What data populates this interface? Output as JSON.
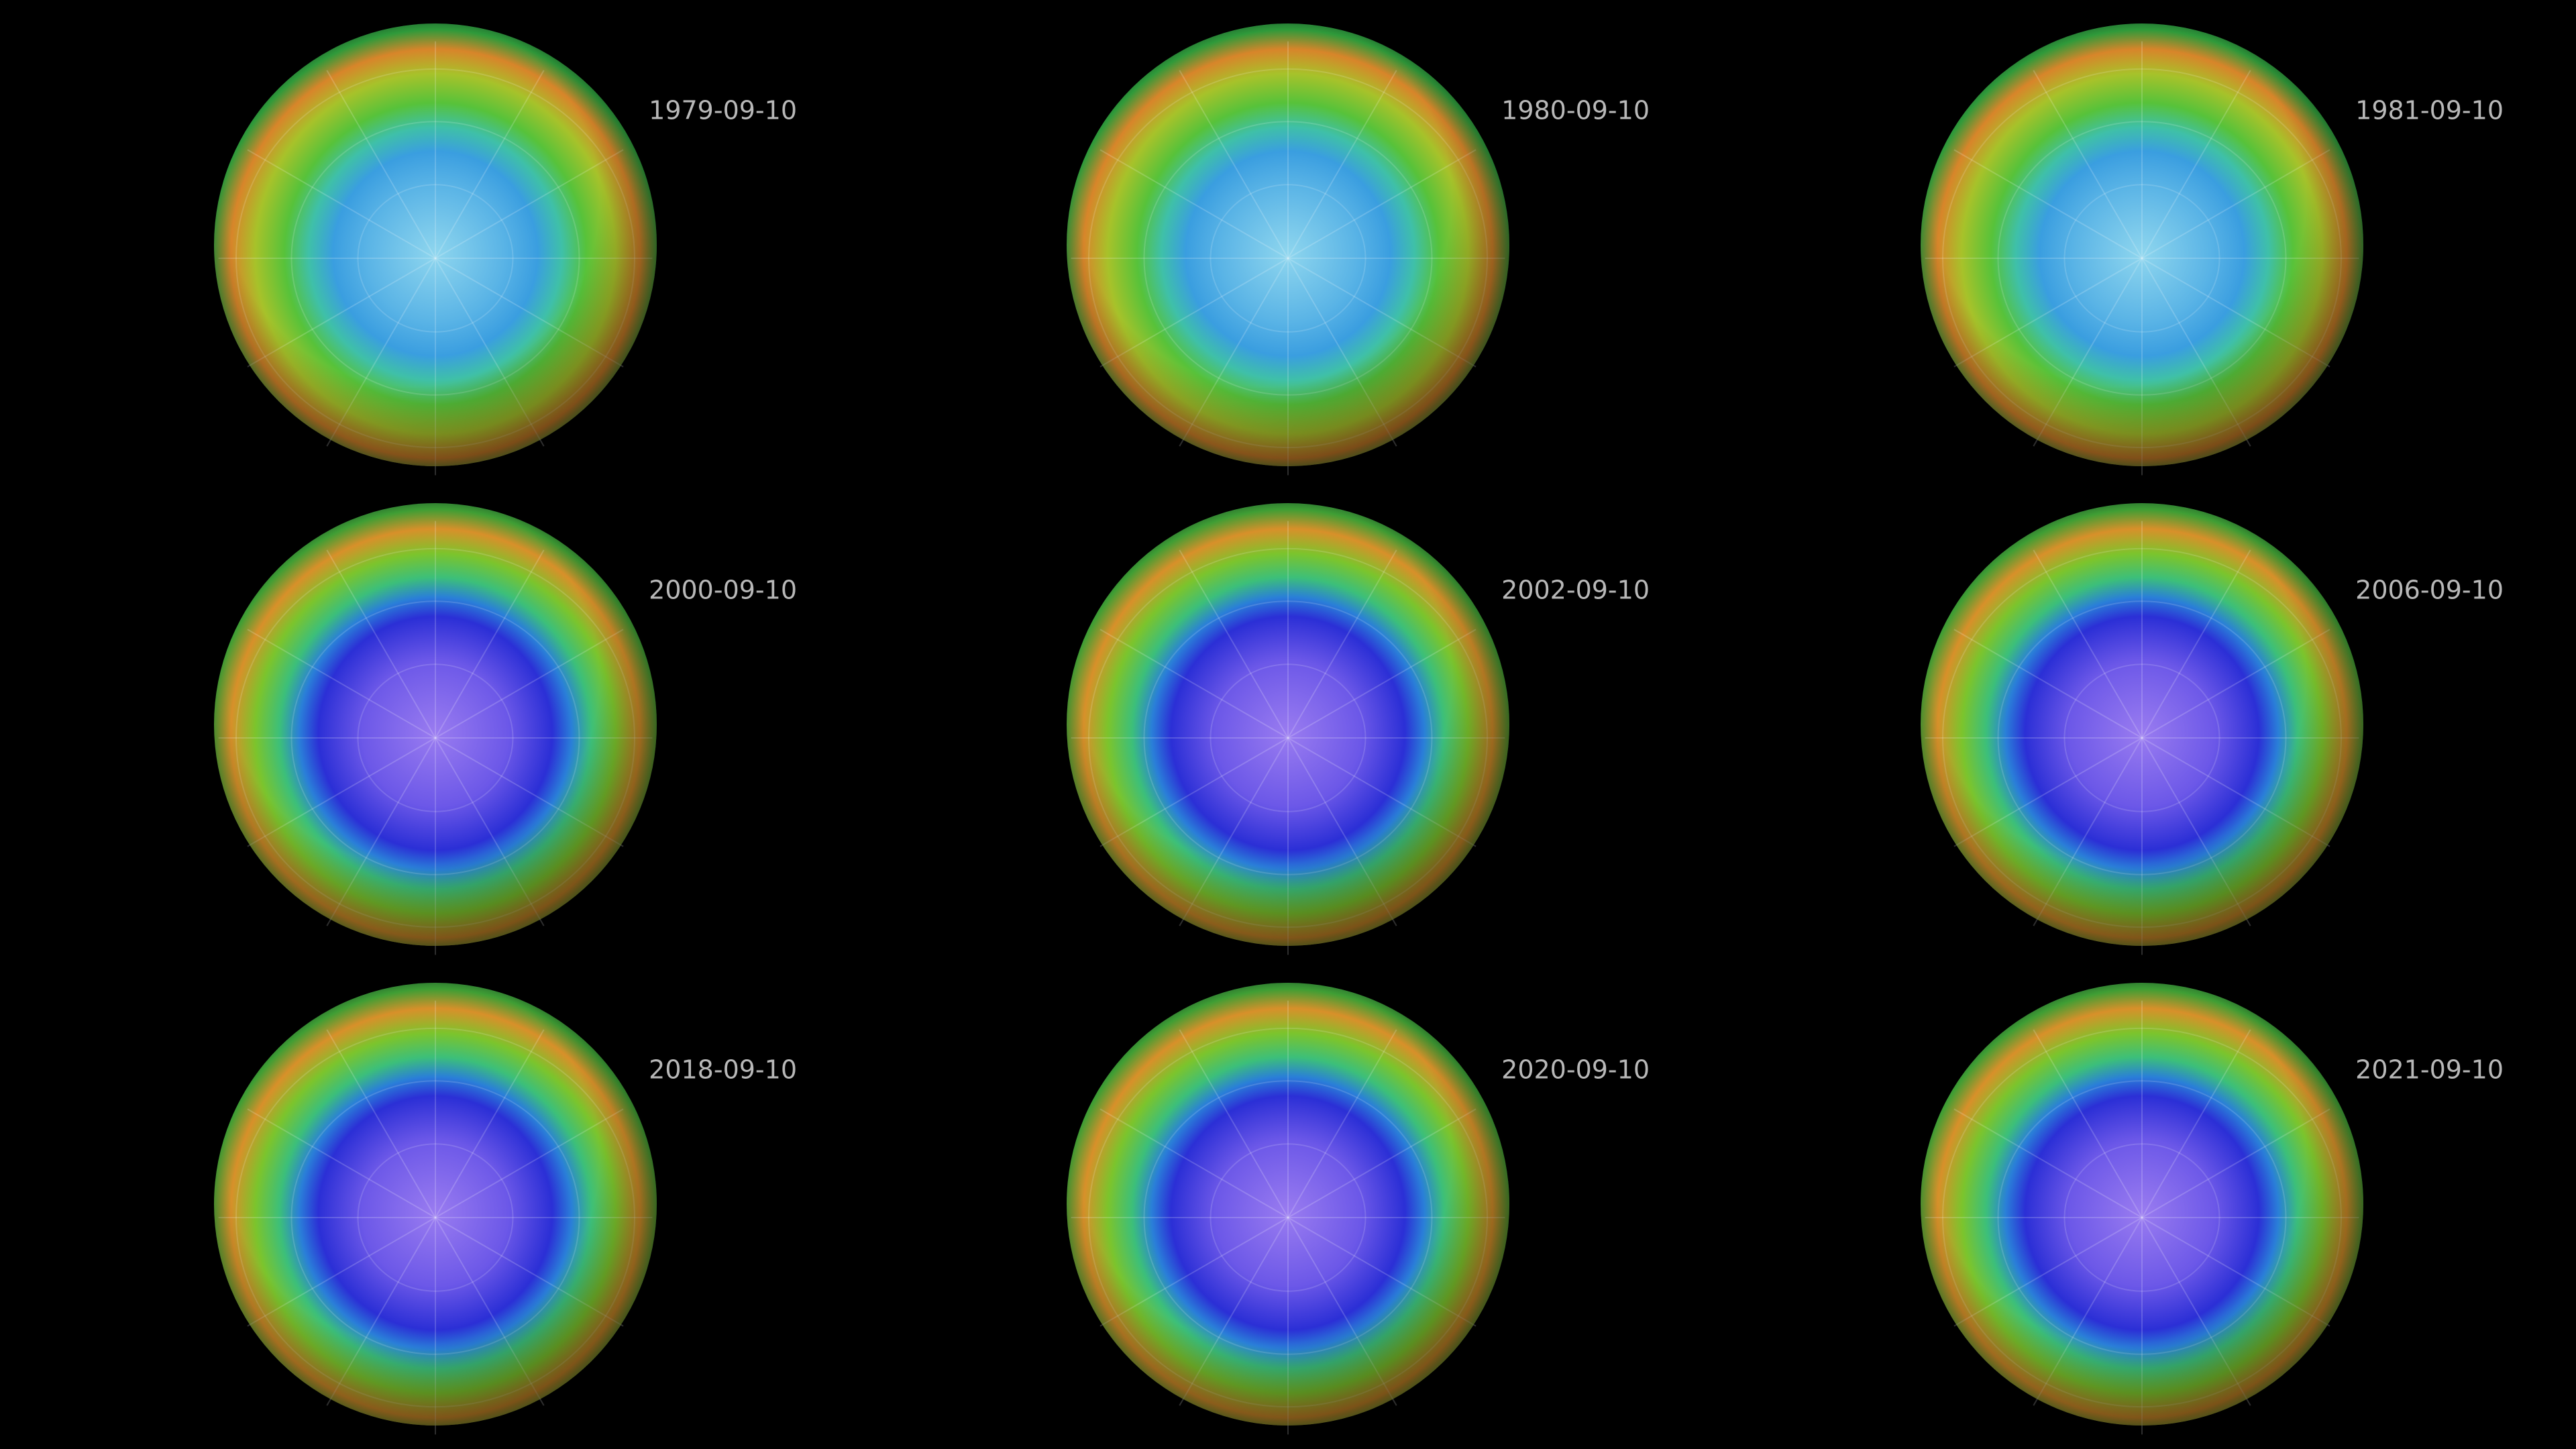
{
  "panels": [
    {
      "date": "1979-09-10"
    },
    {
      "date": "1980-09-10"
    },
    {
      "date": "1981-09-10"
    },
    {
      "date": "2000-09-10"
    },
    {
      "date": "2002-09-10"
    },
    {
      "date": "2006-09-10"
    },
    {
      "date": "2018-09-10"
    },
    {
      "date": "2020-09-10"
    },
    {
      "date": "2021-09-10"
    }
  ]
}
